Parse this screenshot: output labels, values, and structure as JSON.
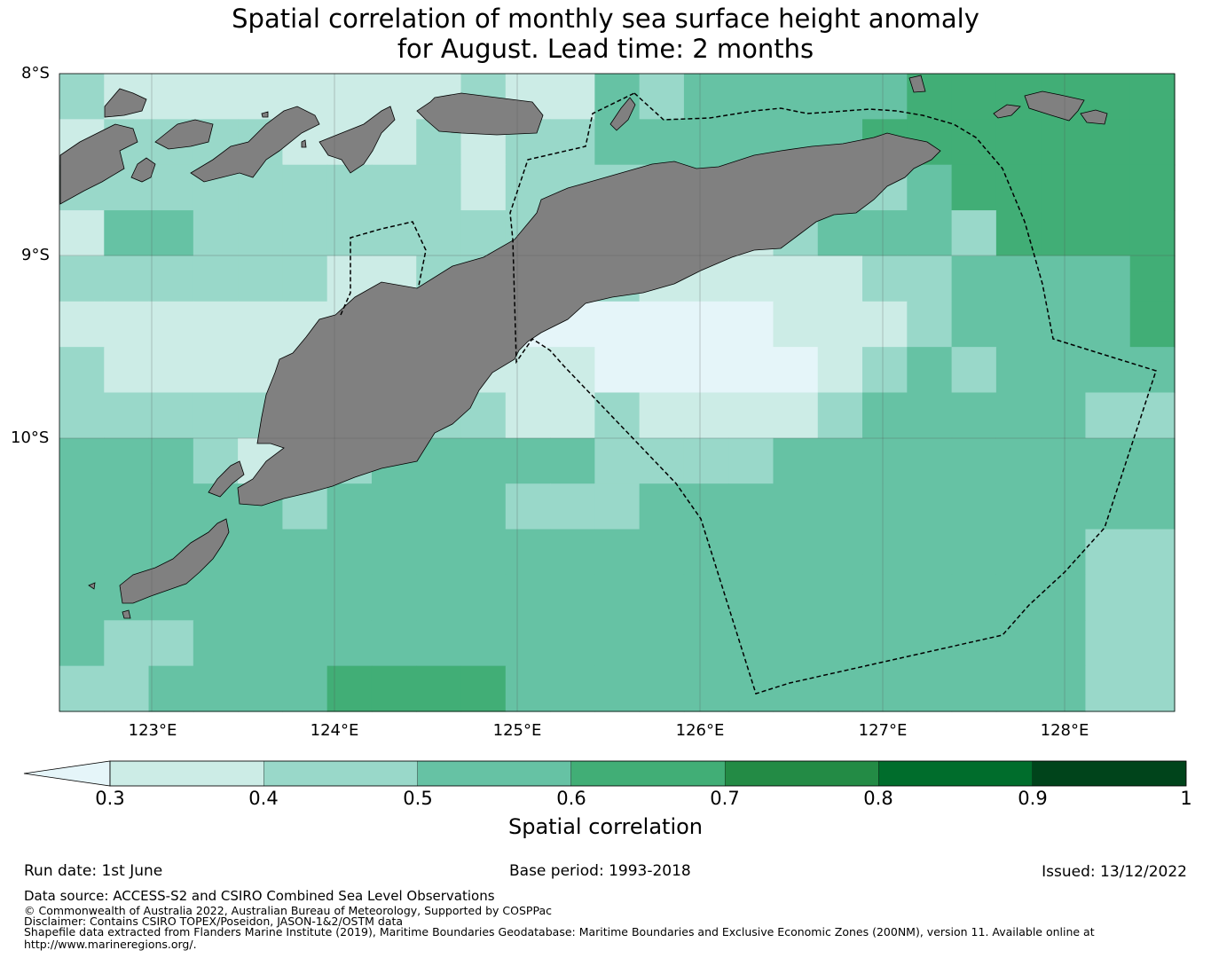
{
  "title": {
    "line1": "Spatial correlation of monthly sea surface height anomaly",
    "line2": "for August. Lead time: 2 months"
  },
  "map": {
    "lat_ticks": [
      "8°S",
      "9°S",
      "10°S"
    ],
    "lon_ticks": [
      "123°E",
      "124°E",
      "125°E",
      "126°E",
      "127°E",
      "128°E"
    ],
    "land_color": "#808080",
    "extent": {
      "lon_min": 122.5,
      "lon_max": 128.6,
      "lat_max": -8.0,
      "lat_min": -11.5
    }
  },
  "colorbar": {
    "label": "Spatial correlation",
    "ticks": [
      "0.3",
      "0.4",
      "0.5",
      "0.6",
      "0.7",
      "0.8",
      "0.9",
      "1"
    ],
    "under_color": "#e5f5f9",
    "colors": [
      "#ccece6",
      "#99d8c9",
      "#66c2a4",
      "#41ae76",
      "#238b45",
      "#006d2c",
      "#00441b"
    ]
  },
  "footer": {
    "run_date": "Run date: 1st June",
    "base_period": "Base period: 1993-2018",
    "issued": "Issued: 13/12/2022",
    "data_source": "Data source: ACCESS-S2 and CSIRO Combined Sea Level Observations",
    "copyright": "© Commonwealth of Australia 2022, Australian Bureau of Meteorology, Supported by COSPPac",
    "disclaimer": "Disclaimer: Contains CSIRO TOPEX/Poseidon, JASON-1&2/OSTM data",
    "shapefile_1": "Shapefile data extracted from Flanders Marine Institute (2019), Maritime Boundaries Geodatabase: Maritime Boundaries and Exclusive Economic Zones (200NM), version 11. Available online at",
    "shapefile_2": "http://www.marineregions.org/."
  }
}
